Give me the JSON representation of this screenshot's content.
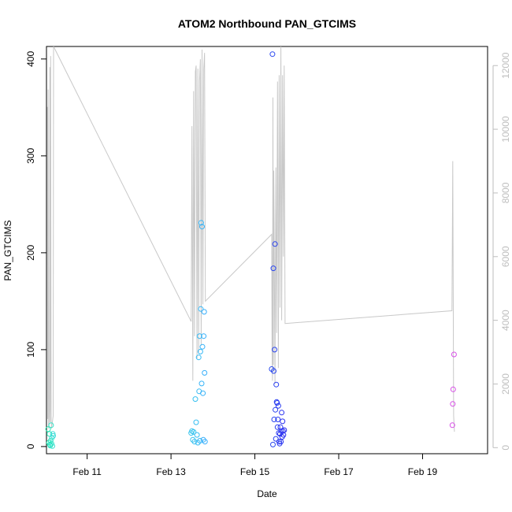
{
  "chart_data": {
    "type": "scatter",
    "title": "ATOM2 Northbound PAN_GTCIMS",
    "xlabel": "Date",
    "ylabel": "PAN_GTCIMS",
    "x_unit": "days since Feb 1",
    "xlim": [
      10.03,
      20.55
    ],
    "ylim": [
      -7.4,
      412.9
    ],
    "x_ticks": [
      {
        "value": 11,
        "label": "Feb 11"
      },
      {
        "value": 13,
        "label": "Feb 13"
      },
      {
        "value": 15,
        "label": "Feb 15"
      },
      {
        "value": 17,
        "label": "Feb 17"
      },
      {
        "value": 19,
        "label": "Feb 19"
      }
    ],
    "y_ticks": [
      0,
      100,
      200,
      300,
      400
    ],
    "y2_ticks": [
      0,
      2000,
      4000,
      6000,
      8000,
      10000,
      12000
    ],
    "y2lim": [
      -190,
      12600
    ],
    "grid": false,
    "legend": "none",
    "colors": {
      "line": "#c8c8c8",
      "right_axis": "#bebebe",
      "axis": "#000000"
    },
    "points": [
      {
        "x": 10.07,
        "y": 18,
        "color": "#26e8b0"
      },
      {
        "x": 10.09,
        "y": 4,
        "color": "#26e8b0"
      },
      {
        "x": 10.1,
        "y": 13,
        "color": "#2ae6b8"
      },
      {
        "x": 10.11,
        "y": 2,
        "color": "#2ae6b8"
      },
      {
        "x": 10.12,
        "y": 1,
        "color": "#2ee4c0"
      },
      {
        "x": 10.13,
        "y": 6,
        "color": "#2ee4c0"
      },
      {
        "x": 10.14,
        "y": 22,
        "color": "#32e2c8"
      },
      {
        "x": 10.15,
        "y": 3,
        "color": "#32e2c8"
      },
      {
        "x": 10.16,
        "y": 9,
        "color": "#36e0d0"
      },
      {
        "x": 10.17,
        "y": 0.5,
        "color": "#36e0d0"
      },
      {
        "x": 10.18,
        "y": 13,
        "color": "#3adcd8"
      },
      {
        "x": 10.19,
        "y": 11,
        "color": "#3adcd8"
      },
      {
        "x": 13.48,
        "y": 14,
        "color": "#36c4ec"
      },
      {
        "x": 13.5,
        "y": 16,
        "color": "#36c4ec"
      },
      {
        "x": 13.52,
        "y": 7,
        "color": "#36c2ee"
      },
      {
        "x": 13.54,
        "y": 15,
        "color": "#36c2ee"
      },
      {
        "x": 13.56,
        "y": 5,
        "color": "#36c0f0"
      },
      {
        "x": 13.58,
        "y": 49,
        "color": "#36c0f0"
      },
      {
        "x": 13.6,
        "y": 25,
        "color": "#36bef2"
      },
      {
        "x": 13.62,
        "y": 12,
        "color": "#36bef2"
      },
      {
        "x": 13.64,
        "y": 4,
        "color": "#36bcf4"
      },
      {
        "x": 13.66,
        "y": 92,
        "color": "#36bcf4"
      },
      {
        "x": 13.67,
        "y": 57,
        "color": "#36baf4"
      },
      {
        "x": 13.68,
        "y": 114,
        "color": "#36baf4"
      },
      {
        "x": 13.69,
        "y": 6,
        "color": "#36b8f6"
      },
      {
        "x": 13.7,
        "y": 98,
        "color": "#36b8f6"
      },
      {
        "x": 13.71,
        "y": 142,
        "color": "#36b6f6"
      },
      {
        "x": 13.72,
        "y": 231,
        "color": "#36b6f6"
      },
      {
        "x": 13.73,
        "y": 65,
        "color": "#36b4f8"
      },
      {
        "x": 13.74,
        "y": 227,
        "color": "#36b4f8"
      },
      {
        "x": 13.75,
        "y": 103,
        "color": "#36b2f8"
      },
      {
        "x": 13.76,
        "y": 55,
        "color": "#36b2f8"
      },
      {
        "x": 13.77,
        "y": 7,
        "color": "#36b0fa"
      },
      {
        "x": 13.78,
        "y": 114,
        "color": "#36b0fa"
      },
      {
        "x": 13.79,
        "y": 139,
        "color": "#36aefa"
      },
      {
        "x": 13.8,
        "y": 76,
        "color": "#36aefa"
      },
      {
        "x": 13.81,
        "y": 5,
        "color": "#36acfc"
      },
      {
        "x": 15.4,
        "y": 80,
        "color": "#2a4cf0"
      },
      {
        "x": 15.42,
        "y": 405,
        "color": "#2a48f0"
      },
      {
        "x": 15.43,
        "y": 2,
        "color": "#2a48f0"
      },
      {
        "x": 15.44,
        "y": 184,
        "color": "#2a46f0"
      },
      {
        "x": 15.45,
        "y": 78,
        "color": "#2a46f0"
      },
      {
        "x": 15.46,
        "y": 28,
        "color": "#2a44f0"
      },
      {
        "x": 15.47,
        "y": 100,
        "color": "#2a44f0"
      },
      {
        "x": 15.48,
        "y": 209,
        "color": "#2a42f0"
      },
      {
        "x": 15.49,
        "y": 38,
        "color": "#2a42f0"
      },
      {
        "x": 15.5,
        "y": 8,
        "color": "#2a40f0"
      },
      {
        "x": 15.51,
        "y": 64,
        "color": "#2a40f0"
      },
      {
        "x": 15.52,
        "y": 46,
        "color": "#2a3ef0"
      },
      {
        "x": 15.53,
        "y": 45,
        "color": "#2a3ef0"
      },
      {
        "x": 15.54,
        "y": 20,
        "color": "#2a3cf0"
      },
      {
        "x": 15.55,
        "y": 28,
        "color": "#2a3cf0"
      },
      {
        "x": 15.56,
        "y": 42,
        "color": "#2a3af0"
      },
      {
        "x": 15.57,
        "y": 14,
        "color": "#2a3af0"
      },
      {
        "x": 15.58,
        "y": 5,
        "color": "#2a38f0"
      },
      {
        "x": 15.59,
        "y": 3,
        "color": "#2a38f0"
      },
      {
        "x": 15.6,
        "y": 13,
        "color": "#2a36f0"
      },
      {
        "x": 15.61,
        "y": 20,
        "color": "#2a36f0"
      },
      {
        "x": 15.62,
        "y": 5,
        "color": "#2a34f0"
      },
      {
        "x": 15.63,
        "y": 16,
        "color": "#2a34f0"
      },
      {
        "x": 15.64,
        "y": 35,
        "color": "#2a32f0"
      },
      {
        "x": 15.65,
        "y": 10,
        "color": "#2a32f0"
      },
      {
        "x": 15.66,
        "y": 26,
        "color": "#2a30f0"
      },
      {
        "x": 15.67,
        "y": 16,
        "color": "#2a30f0"
      },
      {
        "x": 15.68,
        "y": 12,
        "color": "#2a2ef0"
      },
      {
        "x": 15.7,
        "y": 17,
        "color": "#2a2ef0"
      },
      {
        "x": 19.71,
        "y": 22,
        "color": "#d84ee8"
      },
      {
        "x": 19.72,
        "y": 44,
        "color": "#d84ee8"
      },
      {
        "x": 19.73,
        "y": 59,
        "color": "#d84ee8"
      },
      {
        "x": 19.75,
        "y": 95,
        "color": "#d84ee8"
      }
    ],
    "secondary_series": {
      "axis": "right",
      "color": "#c8c8c8",
      "x": [
        10.05,
        10.06,
        10.07,
        10.08,
        10.09,
        10.1,
        10.11,
        10.12,
        10.13,
        10.14,
        10.15,
        10.16,
        10.17,
        10.18,
        10.19,
        10.2,
        13.48,
        13.5,
        13.52,
        13.54,
        13.56,
        13.58,
        13.6,
        13.62,
        13.64,
        13.66,
        13.68,
        13.7,
        13.72,
        13.74,
        13.76,
        13.78,
        13.8,
        13.82,
        15.4,
        15.41,
        15.42,
        15.43,
        15.44,
        15.45,
        15.46,
        15.48,
        15.5,
        15.52,
        15.54,
        15.56,
        15.58,
        15.6,
        15.62,
        15.64,
        15.66,
        15.68,
        15.7,
        15.72,
        19.7,
        19.72,
        19.74,
        19.76
      ],
      "y": [
        10700,
        900,
        11250,
        600,
        700,
        1200,
        11950,
        800,
        12300,
        900,
        600,
        700,
        800,
        900,
        1000,
        12600,
        3960,
        10100,
        2100,
        11200,
        3500,
        11800,
        12000,
        2800,
        11900,
        3000,
        11500,
        12200,
        3200,
        12500,
        4500,
        11900,
        12400,
        4600,
        6700,
        3000,
        2100,
        11000,
        2600,
        8700,
        7000,
        2000,
        8800,
        3600,
        11500,
        2500,
        11700,
        4400,
        12600,
        4000,
        11700,
        6000,
        12000,
        3900,
        4300,
        9000,
        1000,
        500
      ]
    }
  }
}
